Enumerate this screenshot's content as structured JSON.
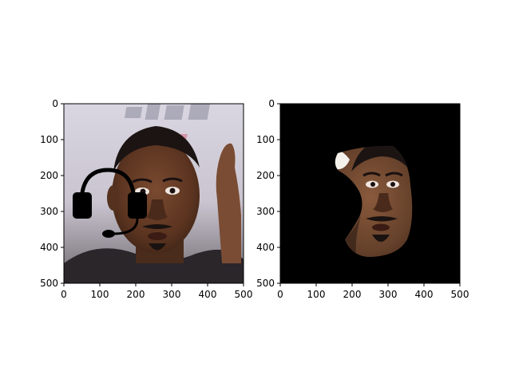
{
  "figure": {
    "background": "#ffffff",
    "panels": [
      {
        "id": "left",
        "content": "photo of a man with a black headset drawing overlaid on the left half",
        "icon": "headset-icon"
      },
      {
        "id": "right",
        "content": "segmented face region on a black background",
        "background": "#000000"
      }
    ]
  },
  "chart_data": [
    {
      "type": "image",
      "title": "",
      "xlabel": "",
      "ylabel": "",
      "xlim": [
        0,
        500
      ],
      "ylim": [
        500,
        0
      ],
      "xticks": [
        "0",
        "100",
        "200",
        "300",
        "400",
        "500"
      ],
      "yticks": [
        "0",
        "100",
        "200",
        "300",
        "400",
        "500"
      ],
      "grid": false,
      "legend": "none"
    },
    {
      "type": "image",
      "title": "",
      "xlabel": "",
      "ylabel": "",
      "xlim": [
        0,
        500
      ],
      "ylim": [
        500,
        0
      ],
      "xticks": [
        "0",
        "100",
        "200",
        "300",
        "400",
        "500"
      ],
      "yticks": [
        "0",
        "100",
        "200",
        "300",
        "400",
        "500"
      ],
      "grid": false,
      "legend": "none"
    }
  ]
}
